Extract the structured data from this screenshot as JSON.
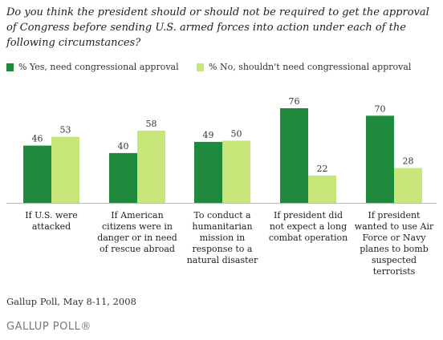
{
  "title": "Do you think the president should or should not be required to get the approval of Congress before sending U.S. armed forces into action under each of the following circumstances?",
  "source": "Gallup Poll, May 8-11, 2008",
  "logo": "GALLUP POLL®",
  "colors": {
    "yes": "#1f8a3c",
    "no": "#c6e67a"
  },
  "chart_data": {
    "type": "bar",
    "title": "Do you think the president should or should not be required to get the approval of Congress before sending U.S. armed forces into action under each of the following circumstances?",
    "categories": [
      "If U.S. were attacked",
      "If American citizens were in danger or in need of rescue abroad",
      "To conduct a humanitarian mission in response to a natural disaster",
      "If president did not expect a long combat operation",
      "If president wanted to use Air Force or Navy planes to bomb suspected terrorists"
    ],
    "category_lines": [
      [
        "If U.S. were",
        "attacked"
      ],
      [
        "If American",
        "citizens were in",
        "danger or in need",
        "of rescue abroad"
      ],
      [
        "To conduct a",
        "humanitarian",
        "mission in",
        "response to a",
        "natural disaster"
      ],
      [
        "If president did",
        "not expect a long",
        "combat operation"
      ],
      [
        "If president",
        "wanted to use Air",
        "Force or Navy",
        "planes to bomb",
        "suspected",
        "terrorists"
      ]
    ],
    "series": [
      {
        "name": "% Yes, need congressional approval",
        "values": [
          46,
          40,
          49,
          76,
          70
        ]
      },
      {
        "name": "% No, shouldn't need congressional approval",
        "values": [
          53,
          58,
          50,
          22,
          28
        ]
      }
    ],
    "legend_position": "top-left",
    "grid": false,
    "ylim": [
      0,
      76
    ]
  }
}
